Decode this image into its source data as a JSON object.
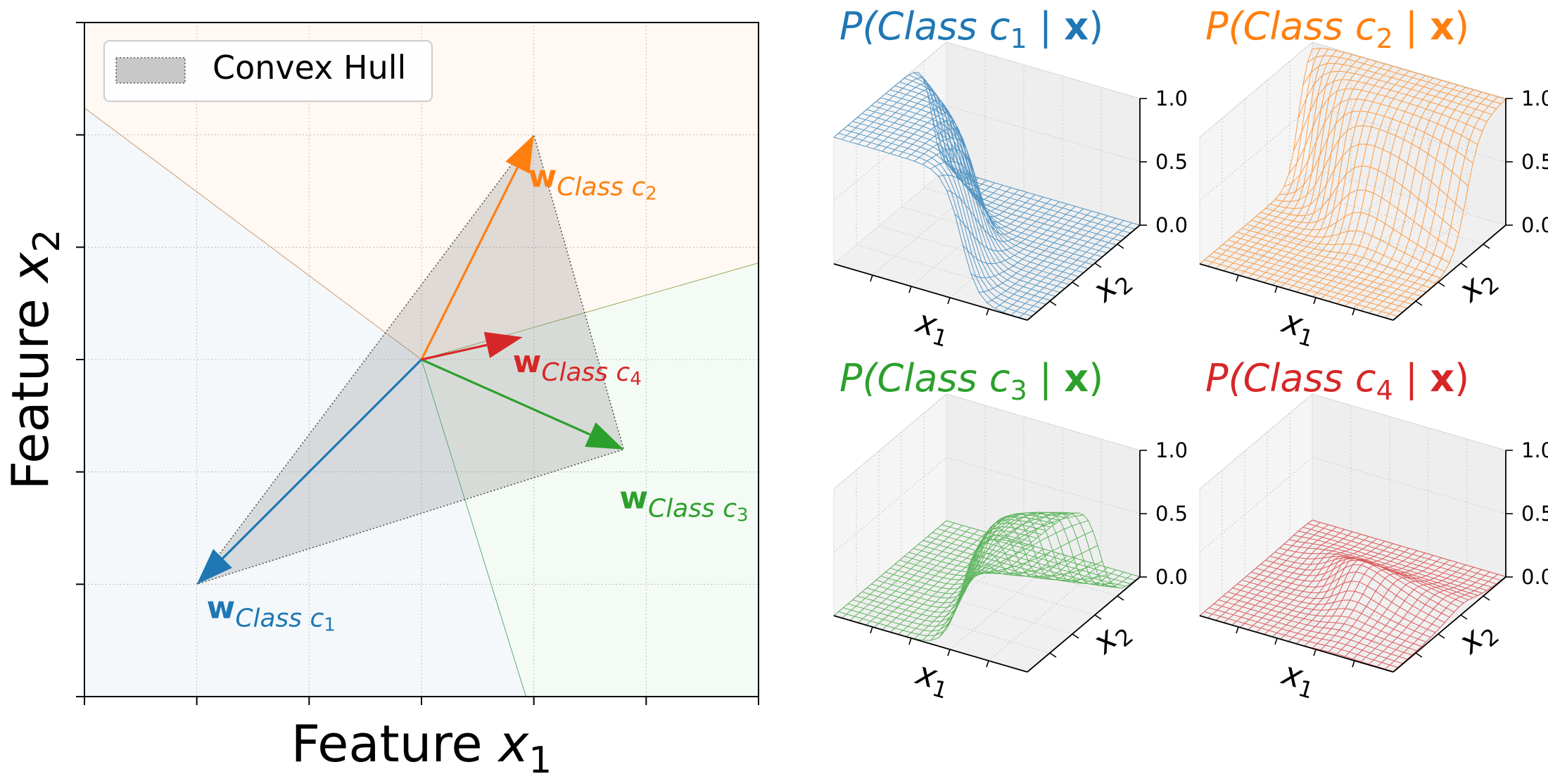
{
  "chart_data": [
    {
      "type": "vector-field",
      "xlabel_prefix": "Feature ",
      "xlabel_var": "x",
      "xlabel_sub": "1",
      "ylabel_prefix": "Feature ",
      "ylabel_var": "x",
      "ylabel_sub": "2",
      "xlim": [
        -3,
        3
      ],
      "ylim": [
        -3,
        3
      ],
      "ticks": [
        -3,
        -2,
        -1,
        0,
        1,
        2,
        3
      ],
      "grid": true,
      "legend_position": "top-left",
      "legend": {
        "label": "Convex Hull"
      },
      "origin": [
        0,
        0
      ],
      "vectors": [
        {
          "name": "c1",
          "label_w": "w",
          "label_class": "Class ",
          "label_var": "c",
          "label_sub": "1",
          "x": -2.0,
          "y": -2.0,
          "color": "#1f77b4"
        },
        {
          "name": "c2",
          "label_w": "w",
          "label_class": "Class ",
          "label_var": "c",
          "label_sub": "2",
          "x": 1.0,
          "y": 2.0,
          "color": "#ff7f0e"
        },
        {
          "name": "c3",
          "label_w": "w",
          "label_class": "Class ",
          "label_var": "c",
          "label_sub": "3",
          "x": 1.8,
          "y": -0.8,
          "color": "#2ca02c"
        },
        {
          "name": "c4",
          "label_w": "w",
          "label_class": "Class ",
          "label_var": "c",
          "label_sub": "4",
          "x": 0.9,
          "y": 0.2,
          "color": "#d62728"
        }
      ],
      "regions": [
        {
          "name": "c1",
          "color": "#1f77b4",
          "polygon": [
            [
              -3,
              -3
            ],
            [
              0.93,
              -3
            ],
            [
              0,
              0
            ],
            [
              -3,
              2.24
            ]
          ]
        },
        {
          "name": "c2",
          "color": "#ff7f0e",
          "polygon": [
            [
              -3,
              2.24
            ],
            [
              0,
              0
            ],
            [
              3,
              0.86
            ],
            [
              3,
              3
            ],
            [
              -3,
              3
            ]
          ]
        },
        {
          "name": "c3",
          "color": "#2ca02c",
          "polygon": [
            [
              0.93,
              -3
            ],
            [
              3,
              -3
            ],
            [
              3,
              0.86
            ],
            [
              0,
              0
            ]
          ]
        }
      ]
    },
    {
      "type": "surface",
      "title_prefix": "P(Class ",
      "title_var": "c",
      "title_sub": "1",
      "title_mid": " | ",
      "title_bold": "x",
      "title_suffix": ")",
      "color": "#1f77b4",
      "zticks": [
        "0.0",
        "0.5",
        "1.0"
      ],
      "xlabel_var": "x",
      "xlabel_sub": "1",
      "ylabel_var": "x",
      "ylabel_sub": "2",
      "weights": [
        -2.0,
        -2.0
      ]
    },
    {
      "type": "surface",
      "title_prefix": "P(Class ",
      "title_var": "c",
      "title_sub": "2",
      "title_mid": " | ",
      "title_bold": "x",
      "title_suffix": ")",
      "color": "#ff7f0e",
      "zticks": [
        "0.0",
        "0.5",
        "1.0"
      ],
      "xlabel_var": "x",
      "xlabel_sub": "1",
      "ylabel_var": "x",
      "ylabel_sub": "2",
      "weights": [
        1.0,
        2.0
      ]
    },
    {
      "type": "surface",
      "title_prefix": "P(Class ",
      "title_var": "c",
      "title_sub": "3",
      "title_mid": " | ",
      "title_bold": "x",
      "title_suffix": ")",
      "color": "#2ca02c",
      "zticks": [
        "0.0",
        "0.5",
        "1.0"
      ],
      "xlabel_var": "x",
      "xlabel_sub": "1",
      "ylabel_var": "x",
      "ylabel_sub": "2",
      "weights": [
        1.8,
        -0.8
      ]
    },
    {
      "type": "surface",
      "title_prefix": "P(Class ",
      "title_var": "c",
      "title_sub": "4",
      "title_mid": " | ",
      "title_bold": "x",
      "title_suffix": ")",
      "color": "#d62728",
      "zticks": [
        "0.0",
        "0.5",
        "1.0"
      ],
      "xlabel_var": "x",
      "xlabel_sub": "1",
      "ylabel_var": "x",
      "ylabel_sub": "2",
      "weights": [
        0.9,
        0.2
      ]
    }
  ]
}
